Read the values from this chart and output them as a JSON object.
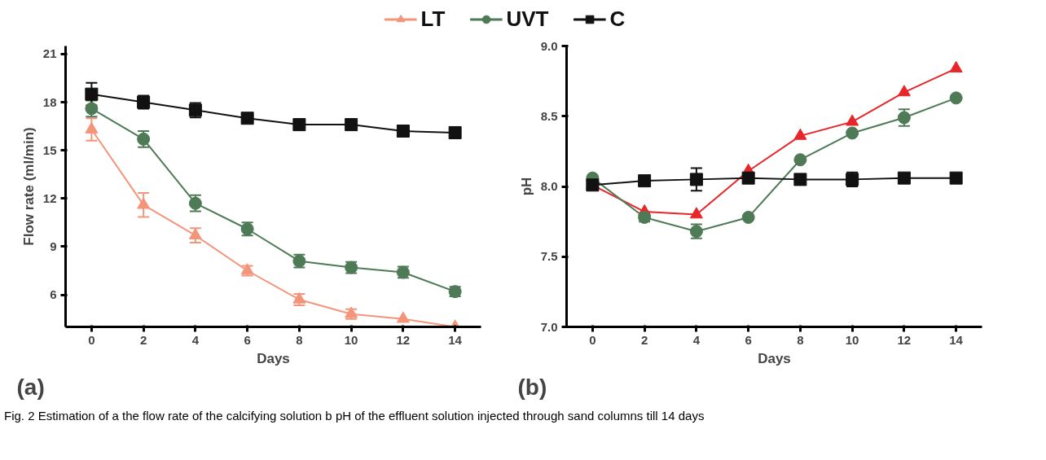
{
  "chart_data": [
    {
      "type": "line",
      "xlabel": "Days",
      "ylabel": "Flow rate (ml/min)",
      "x": [
        0,
        2,
        4,
        6,
        8,
        10,
        12,
        14
      ],
      "xlim": [
        -1,
        15
      ],
      "xticks": [
        0,
        2,
        4,
        6,
        8,
        10,
        12,
        14
      ],
      "ylim": [
        4,
        21.5
      ],
      "yticks": [
        6,
        9,
        12,
        15,
        18,
        21
      ],
      "grid": false,
      "legend": "top",
      "line_style": "solid",
      "annotations": [
        "(a)"
      ],
      "series": [
        {
          "name": "LT",
          "color": "#f4957a",
          "marker": "triangle",
          "values": [
            16.3,
            11.6,
            9.7,
            7.5,
            5.7,
            4.8,
            4.5,
            4.0
          ],
          "errors": [
            0.7,
            0.75,
            0.45,
            0.3,
            0.35,
            0.3,
            null,
            null
          ]
        },
        {
          "name": "UVT",
          "color": "#4e7a56",
          "marker": "circle",
          "values": [
            17.6,
            15.7,
            11.7,
            10.1,
            8.1,
            7.7,
            7.4,
            6.2
          ],
          "errors": [
            0.5,
            0.5,
            0.5,
            0.4,
            0.4,
            0.35,
            0.35,
            0.3
          ]
        },
        {
          "name": "C",
          "color": "#111111",
          "marker": "square",
          "values": [
            18.5,
            18.0,
            17.5,
            17.0,
            16.6,
            16.6,
            16.2,
            16.1
          ],
          "errors": [
            0.7,
            0.4,
            0.45,
            null,
            null,
            null,
            0.3,
            0.35
          ]
        }
      ]
    },
    {
      "type": "line",
      "xlabel": "Days",
      "ylabel": "pH",
      "x": [
        0,
        2,
        4,
        6,
        8,
        10,
        12,
        14
      ],
      "xlim": [
        -1,
        15
      ],
      "xticks": [
        0,
        2,
        4,
        6,
        8,
        10,
        12,
        14
      ],
      "ylim": [
        7,
        9
      ],
      "yticks": [
        {
          "value": 7,
          "label": "7.0"
        },
        7.5,
        {
          "value": 8,
          "label": "8.0"
        },
        8.5,
        {
          "value": 9,
          "label": "9.0"
        }
      ],
      "grid": false,
      "line_style": "solid",
      "annotations": [
        "(b)",
        "Fig. 2  Estimation of a the flow rate of the calcifying solution b pH of the effluent solution injected through sand columns till 14 days"
      ],
      "series": [
        {
          "color": "#e8262a",
          "marker": "triangle",
          "values": [
            8.01,
            7.82,
            7.8,
            8.11,
            8.36,
            8.46,
            8.67,
            8.84
          ]
        },
        {
          "color": "#4e7a56",
          "marker": "circle",
          "values": [
            8.06,
            7.78,
            7.68,
            7.78,
            8.19,
            8.38,
            8.49,
            8.63
          ],
          "errors": [
            null,
            0.03,
            0.05,
            null,
            null,
            null,
            0.06,
            null
          ]
        },
        {
          "color": "#111111",
          "marker": "square",
          "values": [
            8.01,
            8.04,
            8.05,
            8.06,
            8.05,
            8.05,
            8.06,
            8.06
          ],
          "errors": [
            null,
            null,
            0.08,
            null,
            null,
            0.05,
            null,
            null
          ]
        }
      ]
    }
  ]
}
